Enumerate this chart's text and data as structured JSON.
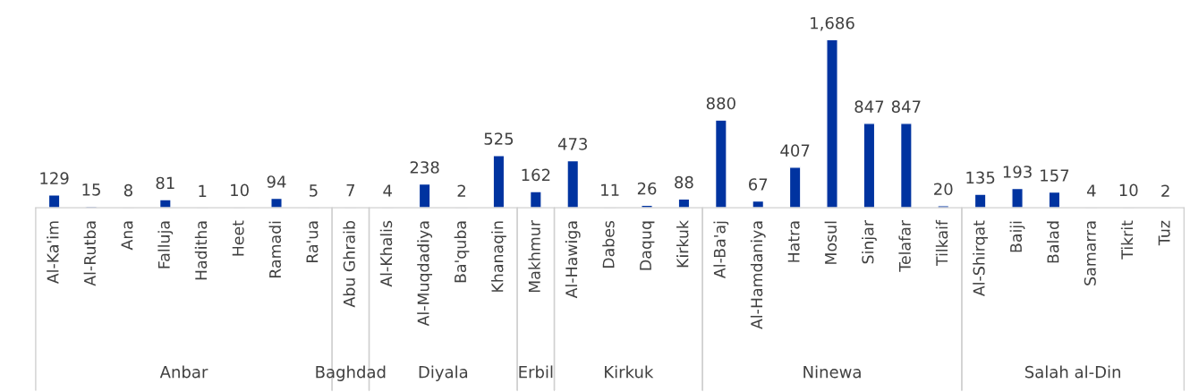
{
  "chart_data": {
    "type": "bar",
    "data_labels": true,
    "color": "#0033a0",
    "grid": false,
    "legend": false,
    "categories": [
      "Al-Ka'im",
      "Al-Rutba",
      "Ana",
      "Falluja",
      "Haditha",
      "Heet",
      "Ramadi",
      "Ra'ua",
      "Abu Ghraib",
      "Al-Khalis",
      "Al-Muqdadiya",
      "Ba'quba",
      "Khanaqin",
      "Makhmur",
      "Al-Hawiga",
      "Dabes",
      "Daquq",
      "Kirkuk",
      "Al-Ba'aj",
      "Al-Hamdaniya",
      "Hatra",
      "Mosul",
      "Sinjar",
      "Telafar",
      "Tilkaif",
      "Al-Shirqat",
      "Baiji",
      "Balad",
      "Samarra",
      "Tikrit",
      "Tuz"
    ],
    "values": [
      129,
      15,
      8,
      81,
      1,
      10,
      94,
      5,
      7,
      4,
      238,
      2,
      525,
      162,
      473,
      11,
      26,
      88,
      880,
      67,
      407,
      1686,
      847,
      847,
      20,
      135,
      193,
      157,
      4,
      10,
      2
    ],
    "value_labels": [
      "129",
      "15",
      "8",
      "81",
      "1",
      "10",
      "94",
      "5",
      "7",
      "4",
      "238",
      "2",
      "525",
      "162",
      "473",
      "11",
      "26",
      "88",
      "880",
      "67",
      "407",
      "1,686",
      "847",
      "847",
      "20",
      "135",
      "193",
      "157",
      "4",
      "10",
      "2"
    ],
    "annotations": [
      "Anbar",
      "Baghdad",
      "Diyala",
      "Erbil",
      "Kirkuk",
      "Ninewa",
      "Salah al-Din"
    ]
  }
}
